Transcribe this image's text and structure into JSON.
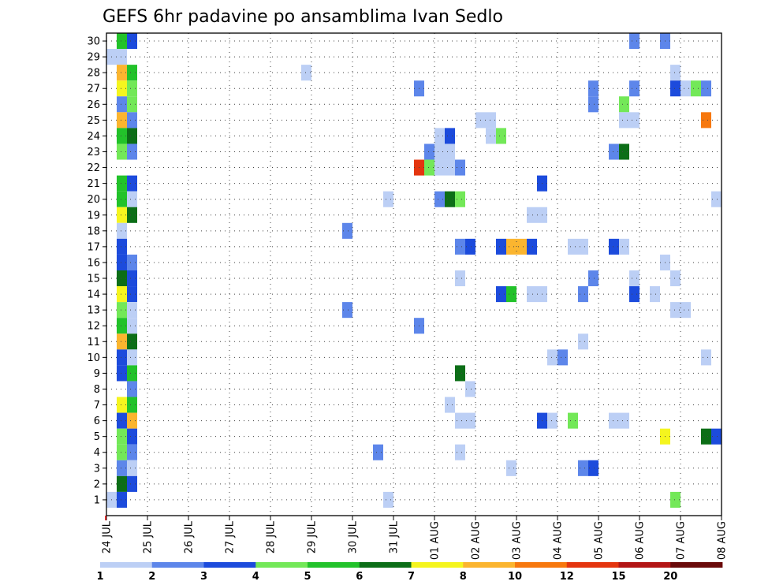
{
  "chart_data": {
    "type": "heatmap",
    "title": "GEFS 6hr padavine po ansamblima Ivan Sedlo",
    "x_tick_labels": [
      "24 JUL",
      "25 JUL",
      "26 JUL",
      "27 JUL",
      "28 JUL",
      "29 JUL",
      "30 JUL",
      "31 JUL",
      "01 AUG",
      "02 AUG",
      "03 AUG",
      "04 AUG",
      "05 AUG",
      "06 AUG",
      "07 AUG",
      "08 AUG"
    ],
    "y_tick_labels": [
      "1",
      "2",
      "3",
      "4",
      "5",
      "6",
      "7",
      "8",
      "9",
      "10",
      "11",
      "12",
      "13",
      "14",
      "15",
      "16",
      "17",
      "18",
      "19",
      "20",
      "21",
      "22",
      "23",
      "24",
      "25",
      "26",
      "27",
      "28",
      "29",
      "30"
    ],
    "xlim": [
      0,
      60
    ],
    "ylim": [
      0,
      30
    ],
    "grid": true,
    "colorbar": {
      "labels": [
        "1",
        "2",
        "3",
        "4",
        "5",
        "6",
        "7",
        "8",
        "10",
        "12",
        "15",
        "20"
      ],
      "colors": [
        "#bccff5",
        "#5d86ea",
        "#1c4bdc",
        "#73e858",
        "#22c22a",
        "#0c6e17",
        "#f5f51e",
        "#fbb52f",
        "#f7780e",
        "#e4350f",
        "#b31515",
        "#6a0a0a"
      ]
    },
    "cells": [
      {
        "x": 1.5,
        "y": 30,
        "c": 5
      },
      {
        "x": 2.5,
        "y": 30,
        "c": 3
      },
      {
        "x": 51.5,
        "y": 30,
        "c": 2
      },
      {
        "x": 54.5,
        "y": 30,
        "c": 2
      },
      {
        "x": 0.5,
        "y": 29,
        "c": 1
      },
      {
        "x": 1.5,
        "y": 29,
        "c": 1
      },
      {
        "x": 1.5,
        "y": 28,
        "c": 8
      },
      {
        "x": 2.5,
        "y": 28,
        "c": 5
      },
      {
        "x": 19.5,
        "y": 28,
        "c": 1
      },
      {
        "x": 55.5,
        "y": 28,
        "c": 1
      },
      {
        "x": 1.5,
        "y": 27,
        "c": 7
      },
      {
        "x": 2.5,
        "y": 27,
        "c": 4
      },
      {
        "x": 30.5,
        "y": 27,
        "c": 2
      },
      {
        "x": 47.5,
        "y": 27,
        "c": 2
      },
      {
        "x": 51.5,
        "y": 27,
        "c": 2
      },
      {
        "x": 55.5,
        "y": 27,
        "c": 3
      },
      {
        "x": 56.5,
        "y": 27,
        "c": 1
      },
      {
        "x": 57.5,
        "y": 27,
        "c": 4
      },
      {
        "x": 58.5,
        "y": 27,
        "c": 2
      },
      {
        "x": 1.5,
        "y": 26,
        "c": 2
      },
      {
        "x": 2.5,
        "y": 26,
        "c": 4
      },
      {
        "x": 47.5,
        "y": 26,
        "c": 2
      },
      {
        "x": 50.5,
        "y": 26,
        "c": 4
      },
      {
        "x": 1.5,
        "y": 25,
        "c": 8
      },
      {
        "x": 2.5,
        "y": 25,
        "c": 2
      },
      {
        "x": 36.5,
        "y": 25,
        "c": 1
      },
      {
        "x": 37.5,
        "y": 25,
        "c": 1
      },
      {
        "x": 50.5,
        "y": 25,
        "c": 1
      },
      {
        "x": 51.5,
        "y": 25,
        "c": 1
      },
      {
        "x": 58.5,
        "y": 25,
        "c": 9
      },
      {
        "x": 1.5,
        "y": 24,
        "c": 5
      },
      {
        "x": 2.5,
        "y": 24,
        "c": 6
      },
      {
        "x": 32.5,
        "y": 24,
        "c": 1
      },
      {
        "x": 33.5,
        "y": 24,
        "c": 3
      },
      {
        "x": 37.5,
        "y": 24,
        "c": 1
      },
      {
        "x": 38.5,
        "y": 24,
        "c": 4
      },
      {
        "x": 1.5,
        "y": 23,
        "c": 4
      },
      {
        "x": 2.5,
        "y": 23,
        "c": 2
      },
      {
        "x": 31.5,
        "y": 23,
        "c": 2
      },
      {
        "x": 32.5,
        "y": 23,
        "c": 1
      },
      {
        "x": 33.5,
        "y": 23,
        "c": 1
      },
      {
        "x": 49.5,
        "y": 23,
        "c": 2
      },
      {
        "x": 50.5,
        "y": 23,
        "c": 6
      },
      {
        "x": 30.5,
        "y": 22,
        "c": 10
      },
      {
        "x": 31.5,
        "y": 22,
        "c": 4
      },
      {
        "x": 32.5,
        "y": 22,
        "c": 1
      },
      {
        "x": 33.5,
        "y": 22,
        "c": 1
      },
      {
        "x": 34.5,
        "y": 22,
        "c": 2
      },
      {
        "x": 1.5,
        "y": 21,
        "c": 5
      },
      {
        "x": 2.5,
        "y": 21,
        "c": 3
      },
      {
        "x": 42.5,
        "y": 21,
        "c": 3
      },
      {
        "x": 1.5,
        "y": 20,
        "c": 5
      },
      {
        "x": 2.5,
        "y": 20,
        "c": 1
      },
      {
        "x": 27.5,
        "y": 20,
        "c": 1
      },
      {
        "x": 32.5,
        "y": 20,
        "c": 2
      },
      {
        "x": 33.5,
        "y": 20,
        "c": 6
      },
      {
        "x": 34.5,
        "y": 20,
        "c": 4
      },
      {
        "x": 59.5,
        "y": 20,
        "c": 1
      },
      {
        "x": 1.5,
        "y": 19,
        "c": 7
      },
      {
        "x": 2.5,
        "y": 19,
        "c": 6
      },
      {
        "x": 41.5,
        "y": 19,
        "c": 1
      },
      {
        "x": 42.5,
        "y": 19,
        "c": 1
      },
      {
        "x": 1.5,
        "y": 18,
        "c": 1
      },
      {
        "x": 23.5,
        "y": 18,
        "c": 2
      },
      {
        "x": 1.5,
        "y": 17,
        "c": 3
      },
      {
        "x": 34.5,
        "y": 17,
        "c": 2
      },
      {
        "x": 35.5,
        "y": 17,
        "c": 3
      },
      {
        "x": 38.5,
        "y": 17,
        "c": 3
      },
      {
        "x": 39.5,
        "y": 17,
        "c": 8
      },
      {
        "x": 40.5,
        "y": 17,
        "c": 8
      },
      {
        "x": 41.5,
        "y": 17,
        "c": 3
      },
      {
        "x": 45.5,
        "y": 17,
        "c": 1
      },
      {
        "x": 46.5,
        "y": 17,
        "c": 1
      },
      {
        "x": 49.5,
        "y": 17,
        "c": 3
      },
      {
        "x": 50.5,
        "y": 17,
        "c": 1
      },
      {
        "x": 1.5,
        "y": 16,
        "c": 3
      },
      {
        "x": 2.5,
        "y": 16,
        "c": 2
      },
      {
        "x": 54.5,
        "y": 16,
        "c": 1
      },
      {
        "x": 1.5,
        "y": 15,
        "c": 6
      },
      {
        "x": 2.5,
        "y": 15,
        "c": 3
      },
      {
        "x": 34.5,
        "y": 15,
        "c": 1
      },
      {
        "x": 47.5,
        "y": 15,
        "c": 2
      },
      {
        "x": 51.5,
        "y": 15,
        "c": 1
      },
      {
        "x": 55.5,
        "y": 15,
        "c": 1
      },
      {
        "x": 1.5,
        "y": 14,
        "c": 7
      },
      {
        "x": 2.5,
        "y": 14,
        "c": 3
      },
      {
        "x": 38.5,
        "y": 14,
        "c": 3
      },
      {
        "x": 39.5,
        "y": 14,
        "c": 5
      },
      {
        "x": 41.5,
        "y": 14,
        "c": 1
      },
      {
        "x": 42.5,
        "y": 14,
        "c": 1
      },
      {
        "x": 46.5,
        "y": 14,
        "c": 2
      },
      {
        "x": 51.5,
        "y": 14,
        "c": 3
      },
      {
        "x": 53.5,
        "y": 14,
        "c": 1
      },
      {
        "x": 1.5,
        "y": 13,
        "c": 4
      },
      {
        "x": 2.5,
        "y": 13,
        "c": 1
      },
      {
        "x": 23.5,
        "y": 13,
        "c": 2
      },
      {
        "x": 55.5,
        "y": 13,
        "c": 1
      },
      {
        "x": 56.5,
        "y": 13,
        "c": 1
      },
      {
        "x": 1.5,
        "y": 12,
        "c": 5
      },
      {
        "x": 2.5,
        "y": 12,
        "c": 1
      },
      {
        "x": 30.5,
        "y": 12,
        "c": 2
      },
      {
        "x": 1.5,
        "y": 11,
        "c": 8
      },
      {
        "x": 2.5,
        "y": 11,
        "c": 6
      },
      {
        "x": 46.5,
        "y": 11,
        "c": 1
      },
      {
        "x": 1.5,
        "y": 10,
        "c": 3
      },
      {
        "x": 2.5,
        "y": 10,
        "c": 1
      },
      {
        "x": 43.5,
        "y": 10,
        "c": 1
      },
      {
        "x": 44.5,
        "y": 10,
        "c": 2
      },
      {
        "x": 58.5,
        "y": 10,
        "c": 1
      },
      {
        "x": 1.5,
        "y": 9,
        "c": 3
      },
      {
        "x": 2.5,
        "y": 9,
        "c": 5
      },
      {
        "x": 34.5,
        "y": 9,
        "c": 6
      },
      {
        "x": 2.5,
        "y": 8,
        "c": 2
      },
      {
        "x": 35.5,
        "y": 8,
        "c": 1
      },
      {
        "x": 1.5,
        "y": 7,
        "c": 7
      },
      {
        "x": 2.5,
        "y": 7,
        "c": 5
      },
      {
        "x": 33.5,
        "y": 7,
        "c": 1
      },
      {
        "x": 1.5,
        "y": 6,
        "c": 3
      },
      {
        "x": 2.5,
        "y": 6,
        "c": 8
      },
      {
        "x": 34.5,
        "y": 6,
        "c": 1
      },
      {
        "x": 35.5,
        "y": 6,
        "c": 1
      },
      {
        "x": 42.5,
        "y": 6,
        "c": 3
      },
      {
        "x": 43.5,
        "y": 6,
        "c": 1
      },
      {
        "x": 45.5,
        "y": 6,
        "c": 4
      },
      {
        "x": 49.5,
        "y": 6,
        "c": 1
      },
      {
        "x": 50.5,
        "y": 6,
        "c": 1
      },
      {
        "x": 1.5,
        "y": 5,
        "c": 4
      },
      {
        "x": 2.5,
        "y": 5,
        "c": 3
      },
      {
        "x": 54.5,
        "y": 5,
        "c": 7
      },
      {
        "x": 58.5,
        "y": 5,
        "c": 6
      },
      {
        "x": 59.5,
        "y": 5,
        "c": 3
      },
      {
        "x": 1.5,
        "y": 4,
        "c": 4
      },
      {
        "x": 2.5,
        "y": 4,
        "c": 2
      },
      {
        "x": 26.5,
        "y": 4,
        "c": 2
      },
      {
        "x": 34.5,
        "y": 4,
        "c": 1
      },
      {
        "x": 1.5,
        "y": 3,
        "c": 2
      },
      {
        "x": 2.5,
        "y": 3,
        "c": 1
      },
      {
        "x": 39.5,
        "y": 3,
        "c": 1
      },
      {
        "x": 46.5,
        "y": 3,
        "c": 2
      },
      {
        "x": 47.5,
        "y": 3,
        "c": 3
      },
      {
        "x": 1.5,
        "y": 2,
        "c": 6
      },
      {
        "x": 2.5,
        "y": 2,
        "c": 3
      },
      {
        "x": 0.5,
        "y": 1,
        "c": 1
      },
      {
        "x": 1.5,
        "y": 1,
        "c": 3
      },
      {
        "x": 27.5,
        "y": 1,
        "c": 1
      },
      {
        "x": 55.5,
        "y": 1,
        "c": 4
      }
    ]
  }
}
